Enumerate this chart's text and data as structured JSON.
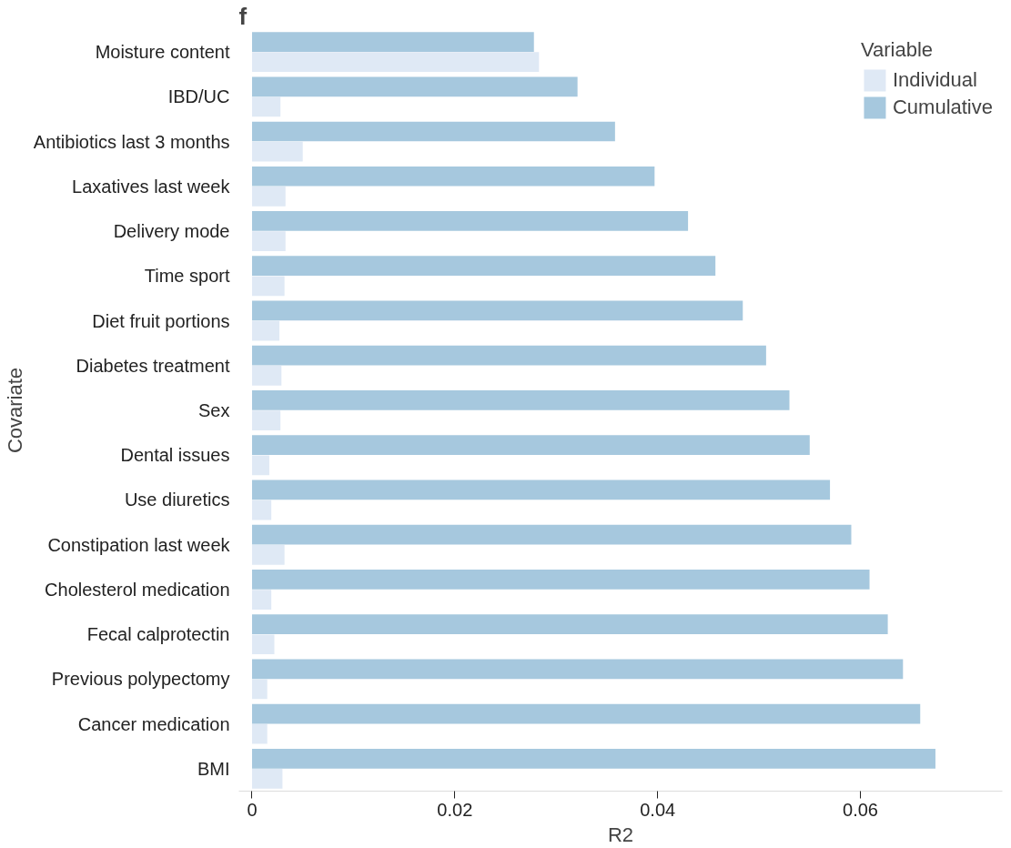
{
  "chart_data": {
    "type": "bar",
    "orientation": "horizontal",
    "annotations": [
      "f"
    ],
    "xlabel": "R2",
    "ylabel": "Covariate",
    "legend_title": "Variable",
    "categories": [
      "Moisture content",
      "IBD/UC",
      "Antibiotics last 3 months",
      "Laxatives last week",
      "Delivery mode",
      "Time sport",
      "Diet fruit portions",
      "Diabetes treatment",
      "Sex",
      "Dental issues",
      "Use diuretics",
      "Constipation last week",
      "Cholesterol medication",
      "Fecal calprotectin",
      "Previous polypectomy",
      "Cancer medication",
      "BMI"
    ],
    "series": [
      {
        "name": "Individual",
        "color": "#dfe9f5",
        "values": [
          0.0283,
          0.0028,
          0.005,
          0.0033,
          0.0033,
          0.0032,
          0.0027,
          0.0029,
          0.0028,
          0.0017,
          0.0019,
          0.0032,
          0.0019,
          0.0022,
          0.0015,
          0.0015,
          0.003
        ]
      },
      {
        "name": "Cumulative",
        "color": "#a6c8de",
        "values": [
          0.0278,
          0.0321,
          0.0358,
          0.0397,
          0.043,
          0.0457,
          0.0484,
          0.0507,
          0.053,
          0.055,
          0.057,
          0.0591,
          0.0609,
          0.0627,
          0.0642,
          0.0659,
          0.0674
        ]
      }
    ],
    "xlim": [
      -0.0013,
      0.074
    ],
    "xticks": [
      0,
      0.02,
      0.04,
      0.06
    ],
    "grid": false,
    "legend": "top right"
  }
}
